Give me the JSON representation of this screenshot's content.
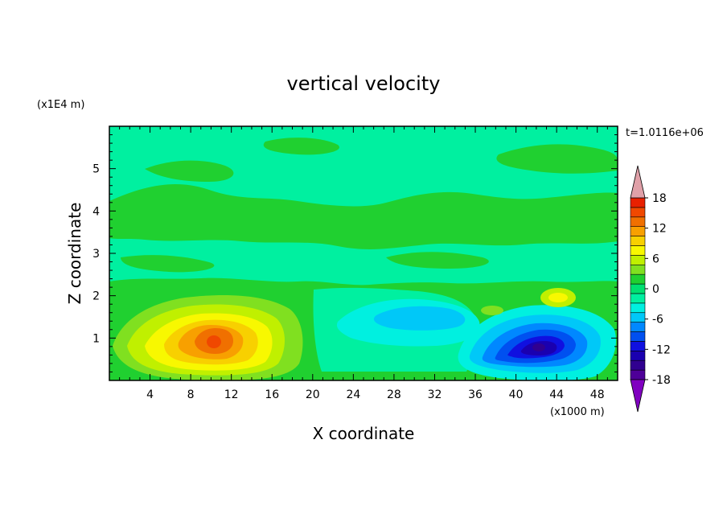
{
  "chart_data": {
    "type": "heatmap",
    "title": "vertical velocity",
    "xlabel": "X coordinate",
    "ylabel": "Z coordinate",
    "x_unit": "(x1000 m)",
    "y_unit": "(x1E4 m)",
    "time_label": "t=1.0116e+06",
    "xlim": [
      0,
      50
    ],
    "ylim": [
      0,
      6
    ],
    "x_ticks": [
      4,
      8,
      12,
      16,
      20,
      24,
      28,
      32,
      36,
      40,
      44,
      48
    ],
    "y_ticks": [
      1,
      2,
      3,
      4,
      5
    ],
    "colorbar": {
      "range": [
        -21,
        21
      ],
      "step": 3,
      "tick_labels": [
        18,
        12,
        6,
        0,
        -6,
        -12,
        -18
      ],
      "colors": [
        "#8000c0",
        "#4e0098",
        "#300090",
        "#1a00b0",
        "#1010e0",
        "#0050f0",
        "#0088ff",
        "#00c8f8",
        "#00f0e0",
        "#00f0a0",
        "#00e070",
        "#20d030",
        "#80e020",
        "#c0f000",
        "#f8f800",
        "#f8d000",
        "#f8a000",
        "#f07000",
        "#f04800",
        "#e82000",
        "#e0a0a8"
      ]
    },
    "features": [
      {
        "name": "updraft core",
        "x": 10.5,
        "z": 0.9,
        "max_value": 14
      },
      {
        "name": "downdraft core",
        "x": 42,
        "z": 0.8,
        "min_value": -16
      },
      {
        "name": "weak downdraft",
        "x": 29,
        "z": 1.3,
        "min_value": -5
      },
      {
        "name": "weak updraft",
        "x": 44.5,
        "z": 1.9,
        "max_value": 5
      }
    ]
  }
}
